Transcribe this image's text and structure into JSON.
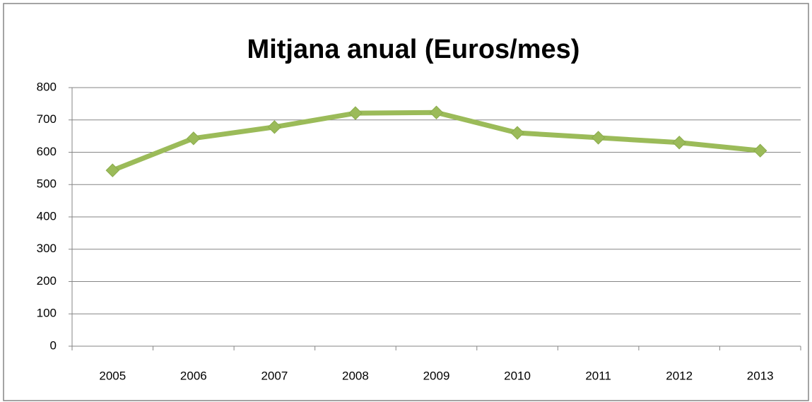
{
  "chart_data": {
    "type": "line",
    "title": "Mitjana anual (Euros/mes)",
    "categories": [
      "2005",
      "2006",
      "2007",
      "2008",
      "2009",
      "2010",
      "2011",
      "2012",
      "2013"
    ],
    "values": [
      544,
      643,
      678,
      721,
      723,
      660,
      645,
      630,
      605
    ],
    "color": "#9bbb59",
    "ylim": [
      0,
      800
    ],
    "yticks": [
      0,
      100,
      200,
      300,
      400,
      500,
      600,
      700,
      800
    ],
    "grid": true
  }
}
